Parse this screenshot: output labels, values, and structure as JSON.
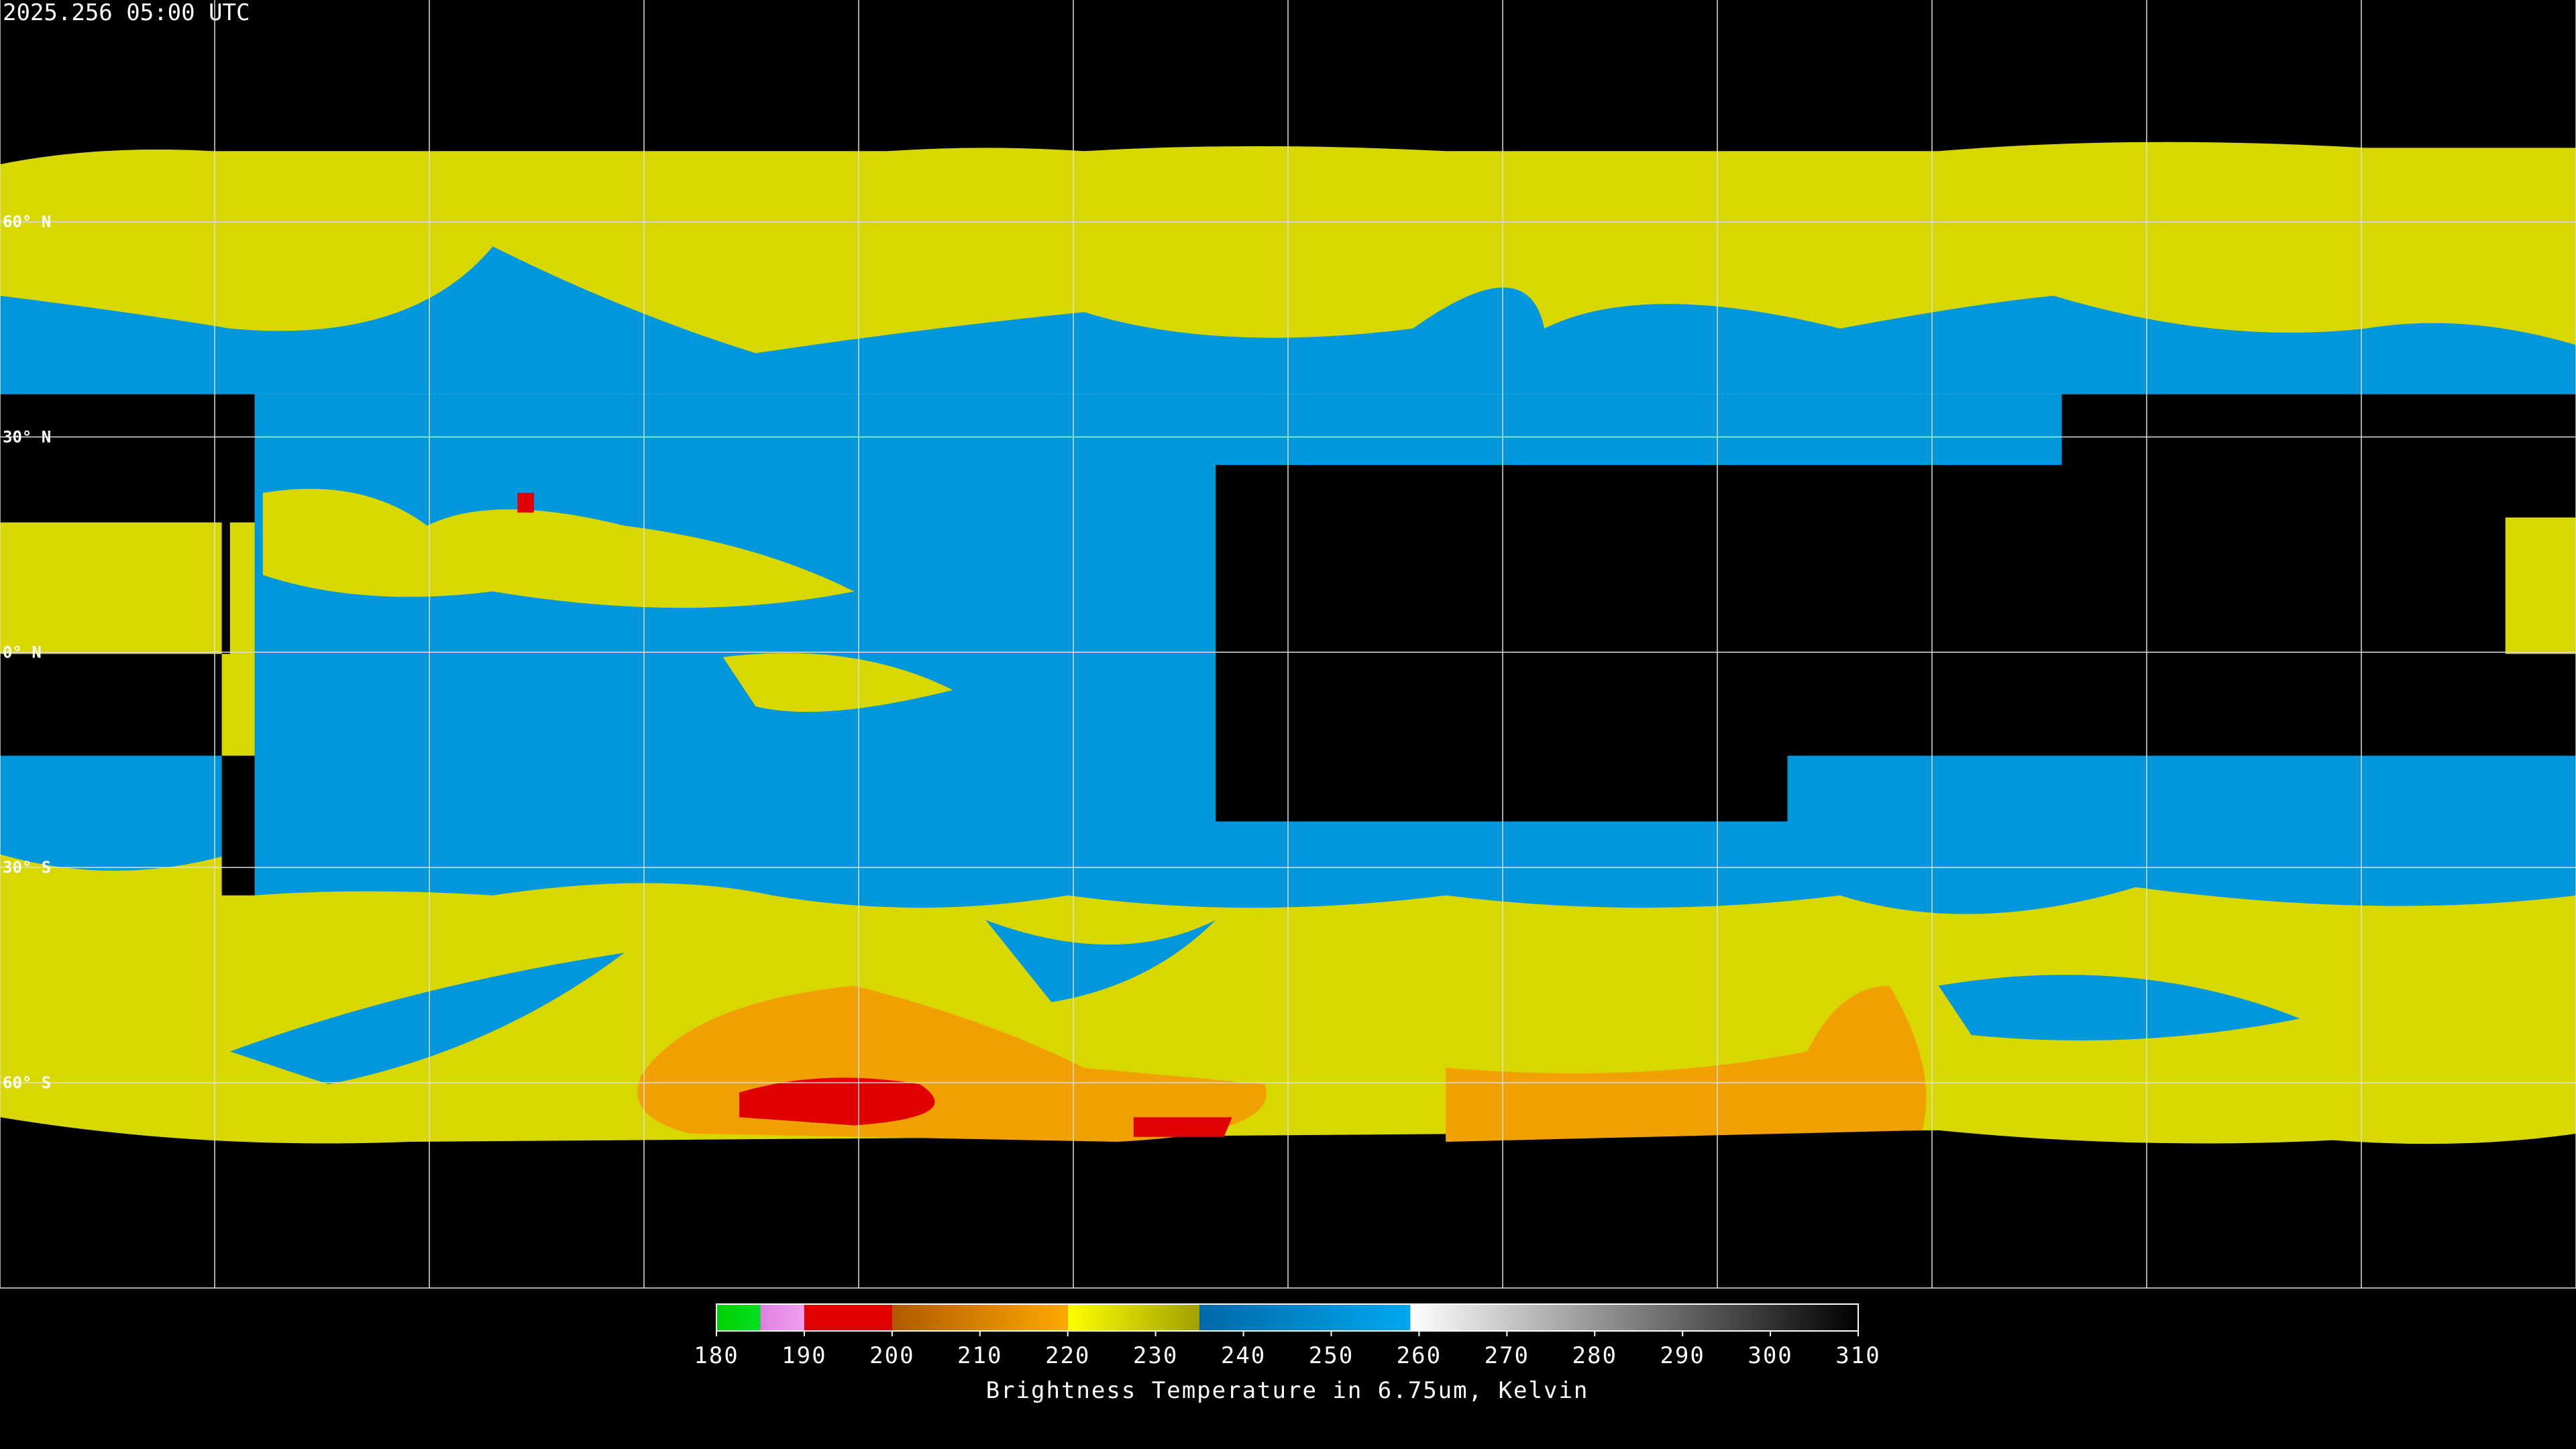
{
  "timestamp": "2025.256 05:00 UTC",
  "latitudes": [
    {
      "value": 60,
      "label": "60° N"
    },
    {
      "value": 30,
      "label": "30° N"
    },
    {
      "value": 0,
      "label": "0° N"
    },
    {
      "value": -30,
      "label": "30° S"
    },
    {
      "value": -60,
      "label": "60° S"
    }
  ],
  "colorbar": {
    "title": "Brightness Temperature in 6.75um, Kelvin",
    "range": [
      180,
      310
    ],
    "ticks": [
      180,
      190,
      200,
      210,
      220,
      230,
      240,
      250,
      260,
      270,
      280,
      290,
      300,
      310
    ],
    "segments": [
      {
        "from": 180,
        "to": 185,
        "colors": [
          "#00d000",
          "#00e020"
        ]
      },
      {
        "from": 185,
        "to": 190,
        "colors": [
          "#e080e0",
          "#f0a0f0"
        ]
      },
      {
        "from": 190,
        "to": 200,
        "colors": [
          "#e00000",
          "#e00000"
        ]
      },
      {
        "from": 200,
        "to": 220,
        "colors": [
          "#b05a00",
          "#ffa800"
        ]
      },
      {
        "from": 220,
        "to": 235,
        "colors": [
          "#ffff00",
          "#a0a000"
        ]
      },
      {
        "from": 235,
        "to": 259,
        "colors": [
          "#0068a8",
          "#00a8f0"
        ]
      },
      {
        "from": 259,
        "to": 310,
        "colors": [
          "#ffffff",
          "#000000"
        ]
      }
    ]
  }
}
